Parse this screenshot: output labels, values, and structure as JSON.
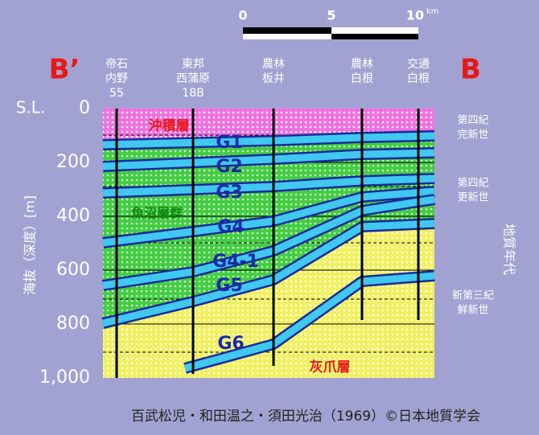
{
  "scale_bar": {
    "labels": [
      "0",
      "5",
      "10"
    ],
    "unit": "km"
  },
  "section": {
    "left_label": "B’",
    "right_label": "B"
  },
  "boreholes": [
    [
      "帝石",
      "内野",
      "55"
    ],
    [
      "東邦",
      "西蒲原",
      "18B"
    ],
    [
      "農林",
      "板井"
    ],
    [
      "農林",
      "白根"
    ],
    [
      "交通",
      "白根"
    ]
  ],
  "axis": {
    "top_label": "S.L.",
    "ticks": [
      "0",
      "200",
      "400",
      "600",
      "800",
      "1,000"
    ],
    "title": "海抜（深度）[m]"
  },
  "layers": {
    "alluvium": "沖積層",
    "g1": "G1",
    "g2": "G2",
    "g3": "G3",
    "g4": "G4",
    "g4_1": "G4-1",
    "g5": "G5",
    "g6": "G6",
    "uonuma": "魚沼層群",
    "haizume": "灰爪層"
  },
  "ages": {
    "holocene": [
      "第四紀",
      "完新世"
    ],
    "pleistocene": [
      "第四紀",
      "更新世"
    ],
    "pliocene": [
      "新第三紀",
      "鮮新世"
    ],
    "title": "地質年代"
  },
  "caption": "百武松児・和田温之・須田光治（1969）©日本地質学会"
}
